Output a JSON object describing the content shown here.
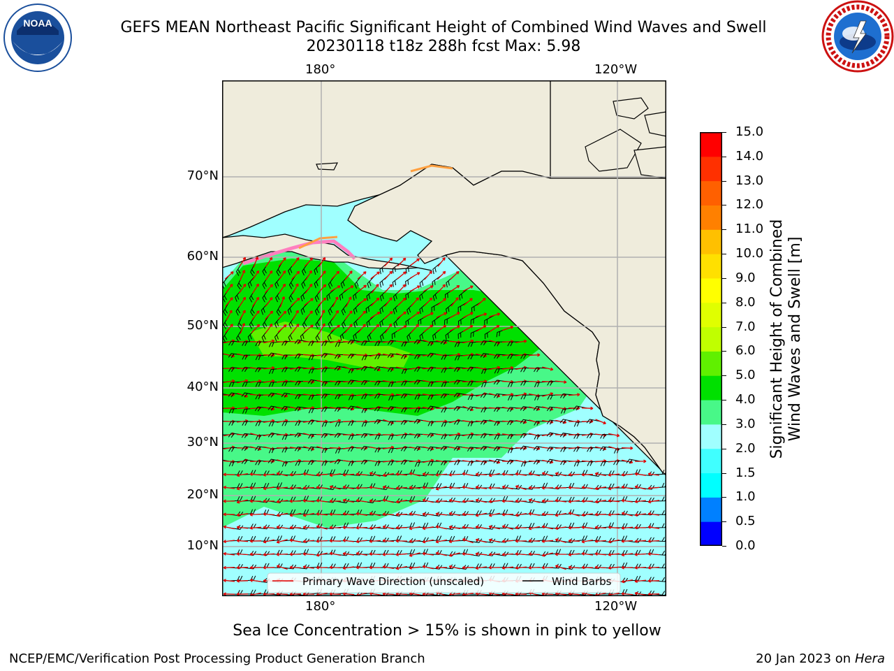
{
  "title": {
    "line1": "GEFS MEAN Northeast Pacific Significant Height of Combined Wind Waves and Swell",
    "line2": "20230118 t18z 288h fcst   Max: 5.98"
  },
  "logos": {
    "left": "noaa-logo",
    "left_text": "NOAA",
    "right": "nws-logo"
  },
  "map": {
    "lon_labels_top": [
      "180°",
      "120°W"
    ],
    "lon_labels_bottom": [
      "180°",
      "120°W"
    ],
    "lat_labels": [
      "70°N",
      "60°N",
      "50°N",
      "40°N",
      "30°N",
      "20°N",
      "10°N"
    ],
    "legend": {
      "wave_direction": "Primary Wave Direction (unscaled)",
      "wind_barbs": "Wind Barbs",
      "wave_color": "#e00000",
      "barb_color": "#000000"
    },
    "land_color": "#efecdc",
    "field_max": 5.98
  },
  "colorbar": {
    "label_line1": "Significant Height of Combined",
    "label_line2": "Wind Waves and Swell [m]",
    "ticks": [
      "0.0",
      "0.5",
      "1.0",
      "1.5",
      "2.0",
      "3.0",
      "4.0",
      "5.0",
      "6.0",
      "7.0",
      "8.0",
      "9.0",
      "10.0",
      "11.0",
      "12.0",
      "13.0",
      "14.0",
      "15.0"
    ],
    "colors": [
      "#0000ff",
      "#0080ff",
      "#00ffff",
      "#40ffff",
      "#a0ffff",
      "#48f888",
      "#00e000",
      "#60f000",
      "#c0ff00",
      "#e0ff00",
      "#ffff00",
      "#ffe000",
      "#ffc000",
      "#ff8000",
      "#ff6000",
      "#ff3000",
      "#ff0000"
    ]
  },
  "notes": {
    "ice": "Sea Ice Concentration > 15% is shown in pink to yellow"
  },
  "footer": {
    "left": "NCEP/EMC/Verification Post Processing Product Generation Branch",
    "right_date": "20 Jan 2023 on",
    "right_host": "Hera"
  }
}
